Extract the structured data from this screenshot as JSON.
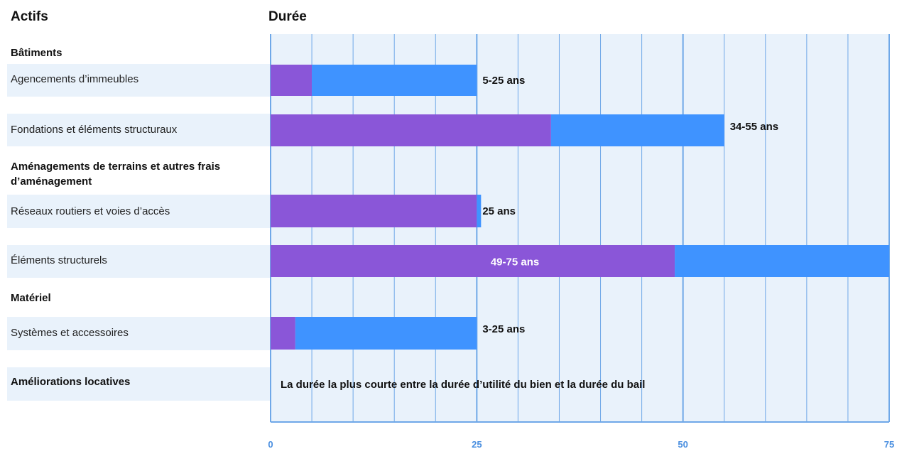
{
  "headers": {
    "assets": "Actifs",
    "duration": "Durée"
  },
  "categories": {
    "buildings": "Bâtiments",
    "land": "Aménagements  de terrains et autres frais d’aménagement",
    "equipment": "Matériel",
    "leasehold": "Améliorations  locatives"
  },
  "rows": [
    {
      "label": "Agencements  d’immeubles"
    },
    {
      "label": "Fondations et éléments  structuraux"
    },
    {
      "label": "Réseaux  routiers et voies d’accès"
    },
    {
      "label": "Éléments  structurels"
    },
    {
      "label": "Systèmes  et accessoires"
    }
  ],
  "leasehold_note": "La durée la plus courte entre la durée d’utilité du bien et la durée du bail",
  "chart_data": {
    "type": "bar",
    "orientation": "horizontal",
    "stacked": true,
    "xlim": [
      0,
      75
    ],
    "x_ticks": [
      "0",
      "25",
      "50",
      "75"
    ],
    "grid": true,
    "categories": [
      "Agencements  d’immeubles",
      "Fondations et éléments  structuraux",
      "Réseaux  routiers et voies d’accès",
      "Éléments  structurels",
      "Systèmes  et accessoires"
    ],
    "ranges": [
      {
        "min": 5,
        "max": 25,
        "label": "5-25 ans"
      },
      {
        "min": 34,
        "max": 55,
        "label": "34-55 ans"
      },
      {
        "min": 25,
        "max": 25,
        "label": "25 ans"
      },
      {
        "min": 49,
        "max": 75,
        "label": "49-75 ans"
      },
      {
        "min": 3,
        "max": 25,
        "label": "3-25 ans"
      }
    ],
    "colors": {
      "min_segment": "#8a56d8",
      "range_segment": "#3f93ff",
      "grid": "#6fa8e8",
      "band": "#e9f2fb",
      "axis_label": "#4a8fe0"
    }
  }
}
